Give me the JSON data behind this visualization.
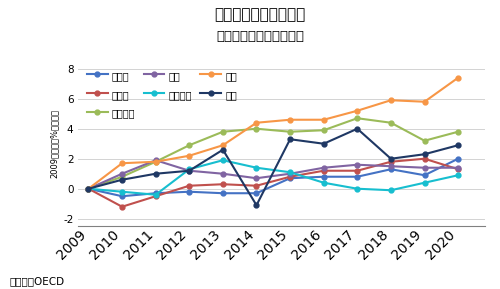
{
  "title1": "国民負担率の国際比較",
  "title2": "～日本の上昇が著しい～",
  "ylabel": "2009年対比：%ポイント",
  "source": "（出所）OECD",
  "years": [
    2009,
    2010,
    2011,
    2012,
    2013,
    2014,
    2015,
    2016,
    2017,
    2018,
    2019,
    2020
  ],
  "series": {
    "カナダ": {
      "color": "#4472C4",
      "values": [
        0.0,
        -0.5,
        -0.3,
        -0.2,
        -0.3,
        -0.3,
        0.7,
        0.8,
        0.8,
        1.3,
        0.9,
        2.0
      ]
    },
    "ドイツ": {
      "color": "#C0504D",
      "values": [
        0.0,
        -1.2,
        -0.5,
        0.2,
        0.3,
        0.2,
        0.8,
        1.2,
        1.2,
        1.8,
        2.0,
        1.3
      ]
    },
    "フランス": {
      "color": "#9BBB59",
      "values": [
        0.0,
        0.8,
        1.8,
        2.9,
        3.8,
        4.0,
        3.8,
        3.9,
        4.7,
        4.4,
        3.2,
        3.8
      ]
    },
    "英国": {
      "color": "#8064A2",
      "values": [
        0.0,
        1.0,
        1.9,
        1.2,
        1.0,
        0.7,
        1.0,
        1.4,
        1.6,
        1.5,
        1.4,
        1.4
      ]
    },
    "イタリア": {
      "color": "#17BECF",
      "values": [
        0.0,
        -0.2,
        -0.4,
        1.3,
        1.9,
        1.4,
        1.1,
        0.4,
        0.0,
        -0.1,
        0.4,
        0.9
      ]
    },
    "日本": {
      "color": "#F79646",
      "values": [
        0.0,
        1.7,
        1.8,
        2.2,
        2.9,
        4.4,
        4.6,
        4.6,
        5.2,
        5.9,
        5.8,
        7.4
      ]
    },
    "米国": {
      "color": "#1F3864",
      "values": [
        0.0,
        0.6,
        1.0,
        1.2,
        2.6,
        -1.1,
        3.3,
        3.0,
        4.0,
        2.0,
        2.3,
        2.9
      ]
    }
  },
  "ylim": [
    -2.5,
    8.5
  ],
  "yticks": [
    -2,
    0,
    2,
    4,
    6,
    8
  ],
  "legend_order": [
    "カナダ",
    "ドイツ",
    "フランス",
    "英国",
    "イタリア",
    "日本",
    "米国"
  ]
}
